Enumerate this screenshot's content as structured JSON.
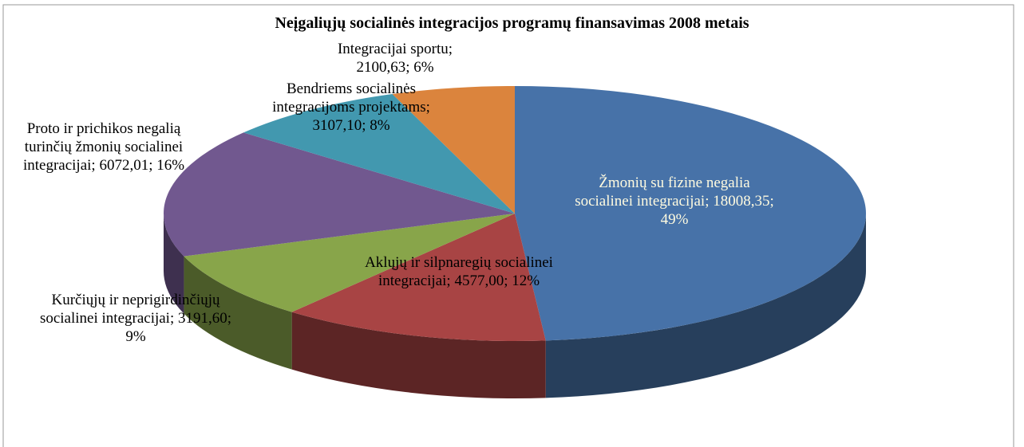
{
  "chart_data": {
    "type": "pie",
    "title": "Neįgaliųjų socialinės integracijos programų finansavimas 2008 metais",
    "categories": [
      "Žmonių su fizine negalia socialinei integracijai;",
      "Aklųjų ir silpnaregių socialinei integracijai;",
      "Kurčiųjų ir neprigirdinčiųjų socialinei integracijai;",
      "Proto ir prichikos negalią turinčių žmonių socialinei integracijai;",
      "Bendriems socialinės integracijoms projektams;",
      "Integracijai sportu;"
    ],
    "values": [
      18008.35,
      4577.0,
      3191.6,
      6072.01,
      3107.1,
      2100.63
    ],
    "value_labels": [
      "18008,35; 49%",
      "4577,00; 12%",
      "3191,60; 9%",
      "6072,01; 16%",
      "3107,10; 8%",
      "2100,63; 6%"
    ],
    "colors": [
      "#4772a8",
      "#a84444",
      "#88a54a",
      "#71588f",
      "#4298af",
      "#db843d"
    ]
  }
}
